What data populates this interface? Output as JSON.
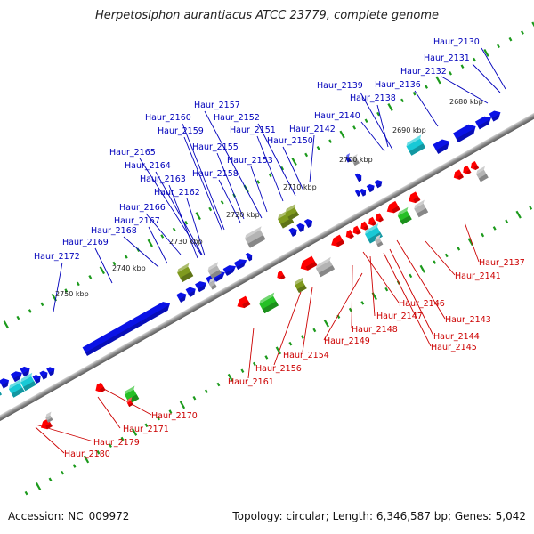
{
  "title": "Herpetosiphon aurantiacus ATCC 23779, complete genome",
  "accession": "Accession: NC_009972",
  "topology": "Topology: circular; Length: 6,346,587 bp; Genes: 5,042",
  "kbp_labels": [
    "2680 kbp",
    "2690 kbp",
    "2700 kbp",
    "2710 kbp",
    "2720 kbp",
    "2730 kbp",
    "2740 kbp",
    "2750 kbp"
  ],
  "upper_genes": [
    "Haur_2130",
    "Haur_2131",
    "Haur_2132",
    "Haur_2136",
    "Haur_2139",
    "Haur_2138",
    "Haur_2140",
    "Haur_2142",
    "Haur_2157",
    "Haur_2152",
    "Haur_2160",
    "Haur_2151",
    "Haur_2159",
    "Haur_2150",
    "Haur_2155",
    "Haur_2165",
    "Haur_2153",
    "Haur_2164",
    "Haur_2158",
    "Haur_2163",
    "Haur_2162",
    "Haur_2166",
    "Haur_2167",
    "Haur_2168",
    "Haur_2169",
    "Haur_2172"
  ],
  "lower_genes": [
    "Haur_2137",
    "Haur_2141",
    "Haur_2146",
    "Haur_2147",
    "Haur_2143",
    "Haur_2148",
    "Haur_2144",
    "Haur_2149",
    "Haur_2145",
    "Haur_2154",
    "Haur_2156",
    "Haur_2161",
    "Haur_2170",
    "Haur_2171",
    "Haur_2179",
    "Haur_2180"
  ],
  "colors": {
    "forward": "#0a12e6",
    "reverse": "#ff0000",
    "cyan": "#19c9d6",
    "green": "#25c025",
    "olive": "#7f9a1e",
    "grey": "#b4b4b4",
    "backbone": "#888888",
    "tick": "#1c9a1c",
    "label_up": "#0000bb",
    "label_down": "#cc0000"
  }
}
